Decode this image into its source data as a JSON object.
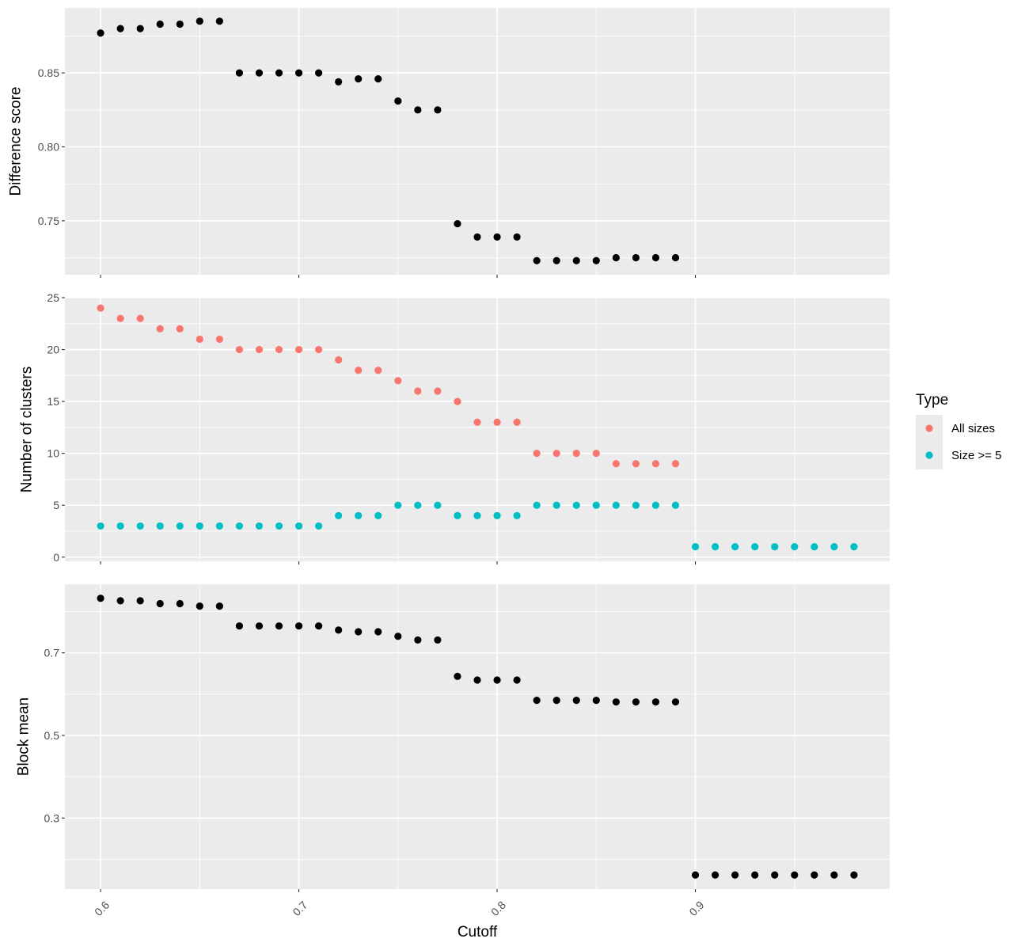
{
  "chart_data": {
    "type": "scatter",
    "shared_x": {
      "label": "Cutoff",
      "xlim": [
        0.582,
        0.998
      ],
      "ticks": [
        0.6,
        0.7,
        0.8,
        0.9
      ],
      "tick_labels": [
        "0.6",
        "0.7",
        "0.8",
        "0.9"
      ]
    },
    "panels": [
      {
        "ylabel": "Difference score",
        "ylim": [
          0.7135,
          0.894
        ],
        "y_ticks": [
          0.75,
          0.8,
          0.85
        ],
        "y_tick_labels": [
          "0.75",
          "0.80",
          "0.85"
        ],
        "series": [
          {
            "x": [
              0.6,
              0.61,
              0.62,
              0.63,
              0.64,
              0.65,
              0.66,
              0.67,
              0.68,
              0.69,
              0.7,
              0.71,
              0.72,
              0.73,
              0.74,
              0.75,
              0.76,
              0.77,
              0.78,
              0.79,
              0.8,
              0.81,
              0.82,
              0.83,
              0.84,
              0.85,
              0.86,
              0.87,
              0.88,
              0.89
            ],
            "y": [
              0.877,
              0.88,
              0.88,
              0.883,
              0.883,
              0.885,
              0.885,
              0.85,
              0.85,
              0.85,
              0.85,
              0.85,
              0.844,
              0.846,
              0.846,
              0.831,
              0.825,
              0.825,
              0.748,
              0.739,
              0.739,
              0.739,
              0.723,
              0.723,
              0.723,
              0.723,
              0.725,
              0.725,
              0.725,
              0.725
            ],
            "color": "#000000"
          }
        ]
      },
      {
        "ylabel": "Number of clusters",
        "ylim": [
          -0.4,
          25.0
        ],
        "y_ticks": [
          0,
          5,
          10,
          15,
          20,
          25
        ],
        "y_tick_labels": [
          "0",
          "5",
          "10",
          "15",
          "20",
          "25"
        ],
        "series": [
          {
            "name": "All sizes",
            "color": "#F8766D",
            "x": [
              0.6,
              0.61,
              0.62,
              0.63,
              0.64,
              0.65,
              0.66,
              0.67,
              0.68,
              0.69,
              0.7,
              0.71,
              0.72,
              0.73,
              0.74,
              0.75,
              0.76,
              0.77,
              0.78,
              0.79,
              0.8,
              0.81,
              0.82,
              0.83,
              0.84,
              0.85,
              0.86,
              0.87,
              0.88,
              0.89
            ],
            "y": [
              24,
              23,
              23,
              22,
              22,
              21,
              21,
              20,
              20,
              20,
              20,
              20,
              19,
              18,
              18,
              17,
              16,
              16,
              15,
              13,
              13,
              13,
              10,
              10,
              10,
              10,
              9,
              9,
              9,
              9
            ]
          },
          {
            "name": "Size >= 5",
            "color": "#00BFC4",
            "x": [
              0.6,
              0.61,
              0.62,
              0.63,
              0.64,
              0.65,
              0.66,
              0.67,
              0.68,
              0.69,
              0.7,
              0.71,
              0.72,
              0.73,
              0.74,
              0.75,
              0.76,
              0.77,
              0.78,
              0.79,
              0.8,
              0.81,
              0.82,
              0.83,
              0.84,
              0.85,
              0.86,
              0.87,
              0.88,
              0.89,
              0.9,
              0.91,
              0.92,
              0.93,
              0.94,
              0.95,
              0.96,
              0.97,
              0.98
            ],
            "y": [
              3,
              3,
              3,
              3,
              3,
              3,
              3,
              3,
              3,
              3,
              3,
              3,
              4,
              4,
              4,
              5,
              5,
              5,
              4,
              4,
              4,
              4,
              5,
              5,
              5,
              5,
              5,
              5,
              5,
              5,
              1,
              1,
              1,
              1,
              1,
              1,
              1,
              1,
              1
            ]
          }
        ]
      },
      {
        "ylabel": "Block mean",
        "ylim": [
          0.128,
          0.866
        ],
        "y_ticks": [
          0.3,
          0.5,
          0.7
        ],
        "y_tick_labels": [
          "0.3",
          "0.5",
          "0.7"
        ],
        "series": [
          {
            "x": [
              0.6,
              0.61,
              0.62,
              0.63,
              0.64,
              0.65,
              0.66,
              0.67,
              0.68,
              0.69,
              0.7,
              0.71,
              0.72,
              0.73,
              0.74,
              0.75,
              0.76,
              0.77,
              0.78,
              0.79,
              0.8,
              0.81,
              0.82,
              0.83,
              0.84,
              0.85,
              0.86,
              0.87,
              0.88,
              0.89,
              0.9,
              0.91,
              0.92,
              0.93,
              0.94,
              0.95,
              0.96,
              0.97,
              0.98
            ],
            "y": [
              0.832,
              0.826,
              0.826,
              0.819,
              0.819,
              0.813,
              0.813,
              0.765,
              0.765,
              0.765,
              0.765,
              0.765,
              0.755,
              0.751,
              0.751,
              0.74,
              0.731,
              0.731,
              0.643,
              0.634,
              0.634,
              0.634,
              0.585,
              0.585,
              0.585,
              0.585,
              0.581,
              0.581,
              0.581,
              0.581,
              0.162,
              0.162,
              0.162,
              0.162,
              0.162,
              0.162,
              0.162,
              0.162,
              0.162
            ],
            "color": "#000000"
          }
        ]
      }
    ],
    "legend": {
      "title": "Type",
      "position": "right",
      "entries": [
        {
          "label": "All sizes",
          "color": "#F8766D"
        },
        {
          "label": "Size >= 5",
          "color": "#00BFC4"
        }
      ]
    },
    "grid": true,
    "panel_background": "#EBEBEB",
    "grid_color": "#FFFFFF"
  }
}
